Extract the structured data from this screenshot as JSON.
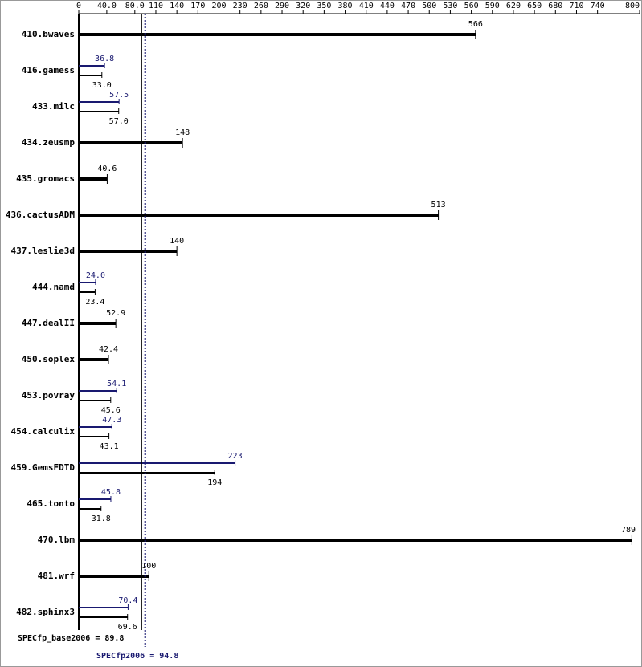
{
  "chart_data": {
    "type": "hbar",
    "xlim": [
      0,
      800
    ],
    "xticks": [
      0,
      {
        "value": 40,
        "label": "40.0"
      },
      {
        "value": 80,
        "label": "80.0"
      },
      110,
      140,
      170,
      200,
      230,
      260,
      290,
      320,
      350,
      380,
      410,
      440,
      470,
      500,
      530,
      560,
      590,
      620,
      650,
      680,
      710,
      740,
      800
    ],
    "categories": [
      "410.bwaves",
      "416.gamess",
      "433.milc",
      "434.zeusmp",
      "435.gromacs",
      "436.cactusADM",
      "437.leslie3d",
      "444.namd",
      "447.dealII",
      "450.soplex",
      "453.povray",
      "454.calculix",
      "459.GemsFDTD",
      "465.tonto",
      "470.lbm",
      "481.wrf",
      "482.sphinx3"
    ],
    "series": [
      {
        "color": "#000000",
        "values": [
          566,
          33.0,
          57.0,
          148,
          40.6,
          513,
          140,
          23.4,
          52.9,
          42.4,
          45.6,
          43.1,
          194,
          31.8,
          789,
          100,
          69.6
        ],
        "value_labels": [
          "566",
          "33.0",
          "57.0",
          "148",
          "40.6",
          "513",
          "140",
          "23.4",
          "52.9",
          "42.4",
          "45.6",
          "43.1",
          "194",
          "31.8",
          "789",
          "100",
          "69.6"
        ]
      },
      {
        "color": "#191970",
        "values": [
          null,
          36.8,
          57.5,
          null,
          null,
          null,
          null,
          24.0,
          null,
          null,
          54.1,
          47.3,
          223,
          45.8,
          null,
          null,
          70.4
        ],
        "value_labels": [
          null,
          "36.8",
          "57.5",
          null,
          null,
          null,
          null,
          "24.0",
          null,
          null,
          "54.1",
          "47.3",
          "223",
          "45.8",
          null,
          null,
          "70.4"
        ]
      }
    ],
    "reference_lines": [
      {
        "label": "SPECfp_base2006 = 89.8",
        "value": 89.8,
        "color": "#000000",
        "style": "solid"
      },
      {
        "label": "SPECfp2006 = 94.8",
        "value": 94.8,
        "color": "#191970",
        "style": "dotted"
      }
    ]
  }
}
